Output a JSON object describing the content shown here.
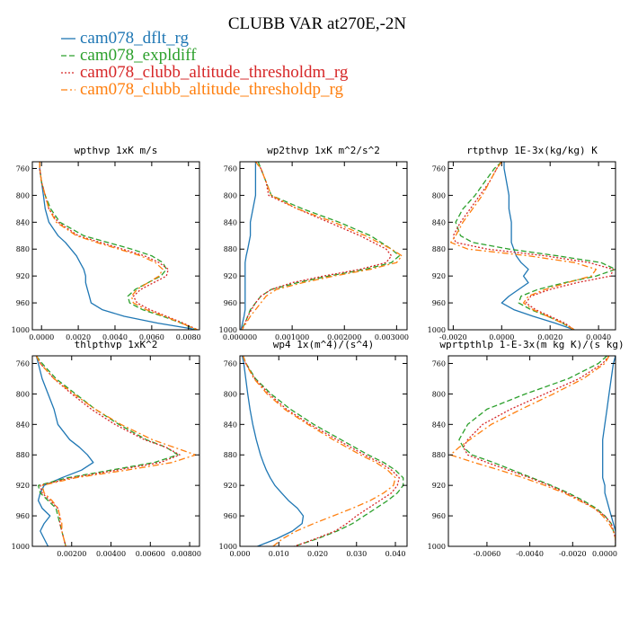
{
  "figure": {
    "title": "CLUBB VAR at270E,-2N"
  },
  "legend": [
    {
      "label": "cam078_dflt_rg",
      "color": "#1f77b4",
      "dash": "solid"
    },
    {
      "label": "cam078_expldiff",
      "color": "#2ca02c",
      "dash": "dashed"
    },
    {
      "label": "cam078_clubb_altitude_thresholdm_rg",
      "color": "#d62728",
      "dash": "dotted"
    },
    {
      "label": "cam078_clubb_altitude_thresholdp_rg",
      "color": "#ff7f0e",
      "dash": "dashdot"
    }
  ],
  "chart_data": [
    {
      "type": "line",
      "title": "wpthvp  1xK m/s",
      "xlim": [
        -0.0005,
        0.0086
      ],
      "ylim": [
        1000,
        750
      ],
      "xticks": [
        0.0,
        0.002,
        0.004,
        0.006,
        0.008
      ],
      "xtick_labels": [
        "0.0000",
        "0.0020",
        "0.0040",
        "0.0060",
        "0.0080"
      ],
      "yticks": [
        760,
        800,
        840,
        880,
        920,
        960,
        1000
      ],
      "y": [
        750,
        760,
        780,
        800,
        820,
        840,
        860,
        870,
        880,
        890,
        900,
        910,
        920,
        930,
        940,
        950,
        960,
        970,
        980,
        990,
        1000
      ],
      "series": [
        {
          "name": "cam078_dflt_rg",
          "x": [
            -0.0001,
            -0.0001,
            0.0,
            0.0001,
            0.0002,
            0.0004,
            0.0009,
            0.0013,
            0.0016,
            0.0019,
            0.0021,
            0.0023,
            0.0024,
            0.0024,
            0.0025,
            0.0026,
            0.0027,
            0.0033,
            0.0045,
            0.0063,
            0.0085
          ]
        },
        {
          "name": "cam078_expldiff",
          "x": [
            -0.0001,
            -0.0001,
            0.0,
            0.0002,
            0.0005,
            0.001,
            0.0023,
            0.0036,
            0.0049,
            0.006,
            0.0066,
            0.0068,
            0.0065,
            0.0058,
            0.0051,
            0.0047,
            0.0048,
            0.0055,
            0.0066,
            0.0076,
            0.0084
          ]
        },
        {
          "name": "cam078_clubb_altitude_thresholdm_rg",
          "x": [
            -0.0001,
            -0.0001,
            0.0,
            0.0002,
            0.0004,
            0.0009,
            0.002,
            0.0032,
            0.0044,
            0.0056,
            0.0064,
            0.0069,
            0.0068,
            0.0061,
            0.0054,
            0.005,
            0.0052,
            0.0059,
            0.0068,
            0.0077,
            0.0085
          ]
        },
        {
          "name": "cam078_clubb_altitude_thresholdp_rg",
          "x": [
            -0.0001,
            -0.0001,
            0.0,
            0.0002,
            0.0004,
            0.0008,
            0.0019,
            0.003,
            0.0042,
            0.0054,
            0.0062,
            0.0066,
            0.0064,
            0.0058,
            0.0052,
            0.0049,
            0.005,
            0.0057,
            0.0067,
            0.0076,
            0.0085
          ]
        }
      ]
    },
    {
      "type": "line",
      "title": "wp2thvp  1xK m^2/s^2",
      "xlim": [
        0.0,
        0.0032
      ],
      "ylim": [
        1000,
        750
      ],
      "xticks": [
        0.0,
        0.001,
        0.002,
        0.003
      ],
      "xtick_labels": [
        "0.000000",
        "0.001000",
        "0.002000",
        "0.003000"
      ],
      "yticks": [
        760,
        800,
        840,
        880,
        920,
        960,
        1000
      ],
      "y": [
        750,
        760,
        780,
        800,
        820,
        840,
        860,
        880,
        890,
        900,
        910,
        920,
        930,
        940,
        950,
        960,
        970,
        980,
        990,
        1000
      ],
      "series": [
        {
          "name": "cam078_dflt_rg",
          "x": [
            0.0003,
            0.0003,
            0.0003,
            0.0003,
            0.00025,
            0.0002,
            0.0002,
            0.00015,
            0.00012,
            0.0001,
            0.0001,
            0.0001,
            0.0001,
            0.0001,
            0.0001,
            0.0001,
            0.0001,
            8e-05,
            5e-05,
            2e-05
          ]
        },
        {
          "name": "cam078_expldiff",
          "x": [
            0.00035,
            0.0004,
            0.0005,
            0.0006,
            0.0012,
            0.0019,
            0.0025,
            0.0029,
            0.00305,
            0.0029,
            0.0024,
            0.0017,
            0.0011,
            0.0006,
            0.0004,
            0.0003,
            0.0002,
            0.00015,
            0.0001,
            3e-05
          ]
        },
        {
          "name": "cam078_clubb_altitude_thresholdm_rg",
          "x": [
            0.0003,
            0.0004,
            0.0005,
            0.00055,
            0.0011,
            0.0017,
            0.0023,
            0.0028,
            0.0029,
            0.0028,
            0.0023,
            0.0016,
            0.001,
            0.0006,
            0.0004,
            0.0003,
            0.00022,
            0.00015,
            0.0001,
            3e-05
          ]
        },
        {
          "name": "cam078_clubb_altitude_thresholdp_rg",
          "x": [
            0.0003,
            0.0004,
            0.0005,
            0.0006,
            0.0011,
            0.0018,
            0.0024,
            0.0029,
            0.0031,
            0.003,
            0.0025,
            0.0018,
            0.0012,
            0.0007,
            0.0005,
            0.0004,
            0.0003,
            0.0002,
            0.00012,
            4e-05
          ]
        }
      ]
    },
    {
      "type": "line",
      "title": "rtpthvp  1E-3x(kg/kg) K",
      "xlim": [
        -0.0022,
        0.0047
      ],
      "ylim": [
        1000,
        750
      ],
      "xticks": [
        -0.002,
        0.0,
        0.002,
        0.004
      ],
      "xtick_labels": [
        "-0.0020",
        "0.0000",
        "0.0020",
        "0.0040"
      ],
      "yticks": [
        760,
        800,
        840,
        880,
        920,
        960,
        1000
      ],
      "y": [
        750,
        760,
        780,
        800,
        820,
        840,
        860,
        870,
        880,
        890,
        900,
        910,
        920,
        930,
        940,
        950,
        960,
        970,
        980,
        990,
        1000
      ],
      "series": [
        {
          "name": "cam078_dflt_rg",
          "x": [
            0.0001,
            0.0001,
            0.0002,
            0.0003,
            0.0003,
            0.0004,
            0.0004,
            0.0004,
            0.0005,
            0.0006,
            0.0008,
            0.0011,
            0.0009,
            0.0011,
            0.0007,
            0.0003,
            0.0,
            0.0005,
            0.0013,
            0.0022,
            0.003
          ]
        },
        {
          "name": "cam078_expldiff",
          "x": [
            0.0,
            -0.0003,
            -0.0007,
            -0.0011,
            -0.0016,
            -0.0019,
            -0.0017,
            -0.0012,
            0.0003,
            0.0023,
            0.0041,
            0.0047,
            0.0039,
            0.0026,
            0.0015,
            0.0008,
            0.0007,
            0.0012,
            0.0019,
            0.0025,
            0.003
          ]
        },
        {
          "name": "cam078_clubb_altitude_thresholdm_rg",
          "x": [
            0.0,
            -0.0002,
            -0.0005,
            -0.0009,
            -0.0013,
            -0.0017,
            -0.002,
            -0.0019,
            -0.0006,
            0.0018,
            0.0036,
            0.0046,
            0.0045,
            0.0031,
            0.002,
            0.0012,
            0.001,
            0.0014,
            0.002,
            0.0026,
            0.003
          ]
        },
        {
          "name": "cam078_clubb_altitude_thresholdp_rg",
          "x": [
            0.0,
            -0.0002,
            -0.0005,
            -0.0008,
            -0.0012,
            -0.0016,
            -0.0019,
            -0.0021,
            -0.0014,
            0.0011,
            0.003,
            0.0039,
            0.0037,
            0.0027,
            0.0018,
            0.0011,
            0.0009,
            0.0013,
            0.0019,
            0.0025,
            0.003
          ]
        }
      ]
    },
    {
      "type": "line",
      "title": "thlpthvp  1xK^2",
      "xlim": [
        0.0,
        0.0085
      ],
      "ylim": [
        1000,
        750
      ],
      "xticks": [
        0.002,
        0.004,
        0.006,
        0.008
      ],
      "xtick_labels": [
        "0.00200",
        "0.00400",
        "0.00600",
        "0.00800"
      ],
      "yticks": [
        760,
        800,
        840,
        880,
        920,
        960,
        1000
      ],
      "y": [
        750,
        760,
        780,
        800,
        820,
        840,
        860,
        870,
        880,
        890,
        900,
        910,
        920,
        930,
        940,
        950,
        960,
        970,
        980,
        990,
        1000
      ],
      "series": [
        {
          "name": "cam078_dflt_rg",
          "x": [
            0.0002,
            0.0003,
            0.0005,
            0.0008,
            0.0011,
            0.0013,
            0.0019,
            0.0024,
            0.0028,
            0.0031,
            0.0025,
            0.0015,
            0.0006,
            0.0004,
            0.0003,
            0.0005,
            0.0009,
            0.0006,
            0.0004,
            0.0006,
            0.0008
          ]
        },
        {
          "name": "cam078_expldiff",
          "x": [
            0.0002,
            0.0005,
            0.0012,
            0.0022,
            0.0032,
            0.0044,
            0.0058,
            0.0068,
            0.0074,
            0.0062,
            0.004,
            0.0018,
            0.0003,
            0.0004,
            0.0008,
            0.0012,
            0.0013,
            0.0014,
            0.0015,
            0.0016,
            0.0017
          ]
        },
        {
          "name": "cam078_clubb_altitude_thresholdm_rg",
          "x": [
            0.0002,
            0.0004,
            0.0011,
            0.002,
            0.003,
            0.0042,
            0.0057,
            0.0068,
            0.0075,
            0.0065,
            0.0043,
            0.002,
            0.0004,
            0.0005,
            0.0009,
            0.0013,
            0.0014,
            0.0014,
            0.0015,
            0.0016,
            0.0017
          ]
        },
        {
          "name": "cam078_clubb_altitude_thresholdp_rg",
          "x": [
            0.0002,
            0.0004,
            0.0011,
            0.0021,
            0.0032,
            0.0045,
            0.0061,
            0.0072,
            0.0083,
            0.0071,
            0.0048,
            0.0022,
            0.0005,
            0.0006,
            0.001,
            0.0013,
            0.0014,
            0.0015,
            0.0015,
            0.0016,
            0.0017
          ]
        }
      ]
    },
    {
      "type": "line",
      "title": "wp4  1x(m^4)/(s^4)",
      "xlim": [
        0.0,
        0.043
      ],
      "ylim": [
        1000,
        750
      ],
      "xticks": [
        0.0,
        0.01,
        0.02,
        0.03,
        0.04
      ],
      "xtick_labels": [
        "0.000",
        "0.010",
        "0.020",
        "0.030",
        "0.040"
      ],
      "yticks": [
        760,
        800,
        840,
        880,
        920,
        960,
        1000
      ],
      "y": [
        750,
        760,
        780,
        800,
        820,
        840,
        860,
        880,
        890,
        900,
        910,
        920,
        930,
        940,
        950,
        960,
        970,
        980,
        990,
        1000
      ],
      "series": [
        {
          "name": "cam078_dflt_rg",
          "x": [
            0.0006,
            0.001,
            0.0015,
            0.002,
            0.0026,
            0.0033,
            0.0042,
            0.0053,
            0.006,
            0.0068,
            0.0078,
            0.009,
            0.0107,
            0.0125,
            0.0148,
            0.0163,
            0.016,
            0.0135,
            0.0095,
            0.0045
          ]
        },
        {
          "name": "cam078_expldiff",
          "x": [
            0.0008,
            0.0016,
            0.004,
            0.008,
            0.013,
            0.019,
            0.026,
            0.033,
            0.037,
            0.04,
            0.042,
            0.042,
            0.0405,
            0.038,
            0.035,
            0.032,
            0.029,
            0.025,
            0.02,
            0.014
          ]
        },
        {
          "name": "cam078_clubb_altitude_thresholdm_rg",
          "x": [
            0.0008,
            0.0015,
            0.0038,
            0.0075,
            0.012,
            0.018,
            0.025,
            0.032,
            0.036,
            0.039,
            0.041,
            0.0405,
            0.039,
            0.036,
            0.033,
            0.03,
            0.0275,
            0.0245,
            0.0195,
            0.014
          ]
        },
        {
          "name": "cam078_clubb_altitude_thresholdp_rg",
          "x": [
            0.0008,
            0.0015,
            0.0036,
            0.007,
            0.0115,
            0.0175,
            0.024,
            0.031,
            0.035,
            0.038,
            0.04,
            0.0395,
            0.037,
            0.0335,
            0.029,
            0.024,
            0.019,
            0.0145,
            0.011,
            0.0085
          ]
        }
      ]
    },
    {
      "type": "line",
      "title": "wprtpthlp  1-E-3x(m kg K)/(s kg)",
      "xlim": [
        -0.0078,
        0.0
      ],
      "ylim": [
        1000,
        750
      ],
      "xticks": [
        -0.006,
        -0.004,
        -0.002,
        0.0
      ],
      "xtick_labels": [
        "-0.0060",
        "-0.0040",
        "-0.0020",
        "0.0000"
      ],
      "yticks": [
        760,
        800,
        840,
        880,
        920,
        960,
        1000
      ],
      "y": [
        750,
        760,
        780,
        800,
        820,
        840,
        860,
        870,
        880,
        890,
        900,
        910,
        920,
        930,
        940,
        950,
        960,
        970,
        980,
        990,
        1000
      ],
      "series": [
        {
          "name": "cam078_dflt_rg",
          "x": [
            0.0,
            -0.0001,
            -0.0002,
            -0.0003,
            -0.0004,
            -0.0005,
            -0.0006,
            -0.0006,
            -0.0006,
            -0.0006,
            -0.0006,
            -0.0006,
            -0.0005,
            -0.0005,
            -0.0004,
            -0.0003,
            -0.0002,
            -0.0001,
            0.0,
            0.0,
            0.0
          ]
        },
        {
          "name": "cam078_expldiff",
          "x": [
            -0.0004,
            -0.0008,
            -0.0022,
            -0.0042,
            -0.006,
            -0.0069,
            -0.0073,
            -0.0071,
            -0.0067,
            -0.0057,
            -0.0048,
            -0.0039,
            -0.003,
            -0.0022,
            -0.0015,
            -0.0009,
            -0.0005,
            -0.0002,
            -0.0001,
            0.0,
            0.0
          ]
        },
        {
          "name": "cam078_clubb_altitude_thresholdm_rg",
          "x": [
            -0.0003,
            -0.0006,
            -0.0017,
            -0.0033,
            -0.0049,
            -0.0062,
            -0.0069,
            -0.0071,
            -0.0069,
            -0.006,
            -0.005,
            -0.004,
            -0.0031,
            -0.0023,
            -0.0016,
            -0.001,
            -0.0005,
            -0.0002,
            -0.0001,
            0.0,
            0.0
          ]
        },
        {
          "name": "cam078_clubb_altitude_thresholdp_rg",
          "x": [
            -0.0003,
            -0.0005,
            -0.0015,
            -0.0029,
            -0.0044,
            -0.0058,
            -0.0068,
            -0.0073,
            -0.0077,
            -0.0066,
            -0.0054,
            -0.0043,
            -0.0033,
            -0.0024,
            -0.0017,
            -0.001,
            -0.0006,
            -0.0003,
            -0.0001,
            0.0,
            0.0
          ]
        }
      ]
    }
  ]
}
